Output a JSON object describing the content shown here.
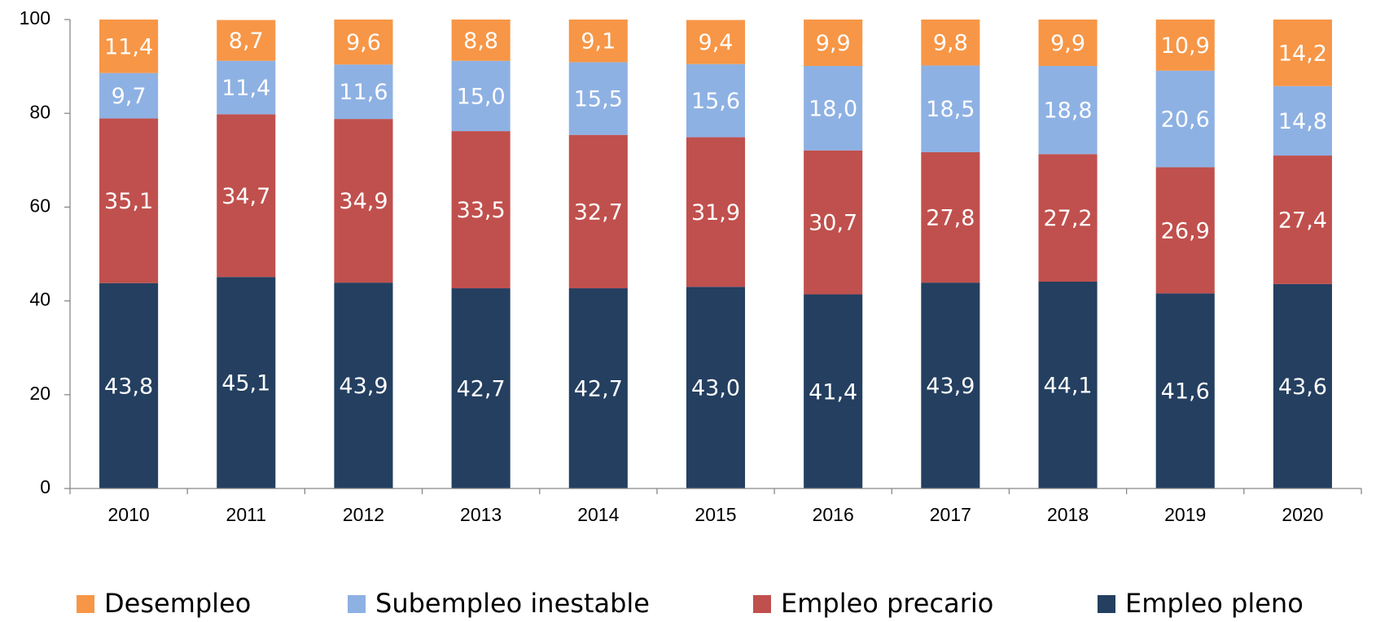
{
  "chart_data": {
    "type": "stacked-bar",
    "categories": [
      "2010",
      "2011",
      "2012",
      "2013",
      "2014",
      "2015",
      "2016",
      "2017",
      "2018",
      "2019",
      "2020"
    ],
    "series": [
      {
        "name": "Desempleo",
        "color": "#f79646",
        "values": [
          11.4,
          8.7,
          9.6,
          8.8,
          9.1,
          9.4,
          9.9,
          9.8,
          9.9,
          10.9,
          14.2
        ],
        "value_labels": [
          "11,4",
          "8,7",
          "9,6",
          "8,8",
          "9,1",
          "9,4",
          "9,9",
          "9,8",
          "9,9",
          "10,9",
          "14,2"
        ]
      },
      {
        "name": "Subempleo inestable",
        "color": "#8eb1e3",
        "values": [
          9.7,
          11.4,
          11.6,
          15.0,
          15.5,
          15.6,
          18.0,
          18.5,
          18.8,
          20.6,
          14.8
        ],
        "value_labels": [
          "9,7",
          "11,4",
          "11,6",
          "15,0",
          "15,5",
          "15,6",
          "18,0",
          "18,5",
          "18,8",
          "20,6",
          "14,8"
        ]
      },
      {
        "name": "Empleo precario",
        "color": "#c0504d",
        "values": [
          35.1,
          34.7,
          34.9,
          33.5,
          32.7,
          31.9,
          30.7,
          27.8,
          27.2,
          26.9,
          27.4
        ],
        "value_labels": [
          "35,1",
          "34,7",
          "34,9",
          "33,5",
          "32,7",
          "31,9",
          "30,7",
          "27,8",
          "27,2",
          "26,9",
          "27,4"
        ]
      },
      {
        "name": "Empleo pleno",
        "color": "#243f60",
        "values": [
          43.8,
          45.1,
          43.9,
          42.7,
          42.7,
          43.0,
          41.4,
          43.9,
          44.1,
          41.6,
          43.6
        ],
        "value_labels": [
          "43,8",
          "45,1",
          "43,9",
          "42,7",
          "42,7",
          "43,0",
          "41,4",
          "43,9",
          "44,1",
          "41,6",
          "43,6"
        ]
      }
    ],
    "ylim": [
      0,
      100
    ],
    "yticks": [
      0,
      20,
      40,
      60,
      80,
      100
    ],
    "grid": false,
    "legend": "bottom"
  }
}
